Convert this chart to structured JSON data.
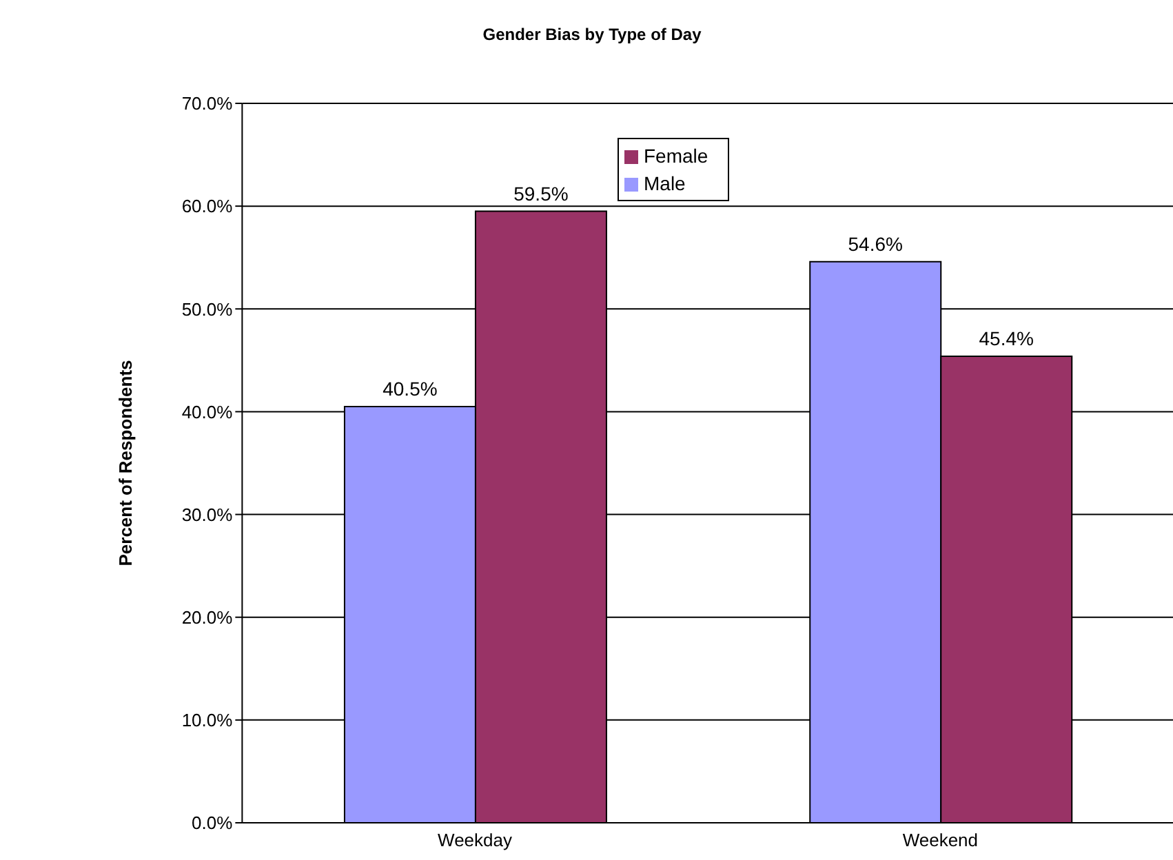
{
  "chart_data": {
    "type": "bar",
    "title": "Gender Bias by Type of Day",
    "ylabel": "Percent of Respondents",
    "categories": [
      "Weekday",
      "Weekend"
    ],
    "series": [
      {
        "name": "Male",
        "color": "#9999ff",
        "values": [
          40.5,
          54.6
        ],
        "value_labels": [
          "40.5%",
          "54.6%"
        ]
      },
      {
        "name": "Female",
        "color": "#993366",
        "values": [
          59.5,
          45.4
        ],
        "value_labels": [
          "59.5%",
          "45.4%"
        ]
      }
    ],
    "ylim": [
      0,
      70
    ],
    "yticks": [
      {
        "value": 0,
        "label": "0.0%"
      },
      {
        "value": 10,
        "label": "10.0%"
      },
      {
        "value": 20,
        "label": "20.0%"
      },
      {
        "value": 30,
        "label": "30.0%"
      },
      {
        "value": 40,
        "label": "40.0%"
      },
      {
        "value": 50,
        "label": "50.0%"
      },
      {
        "value": 60,
        "label": "60.0%"
      },
      {
        "value": 70,
        "label": "70.0%"
      }
    ],
    "grid": "y",
    "legend": "top"
  }
}
